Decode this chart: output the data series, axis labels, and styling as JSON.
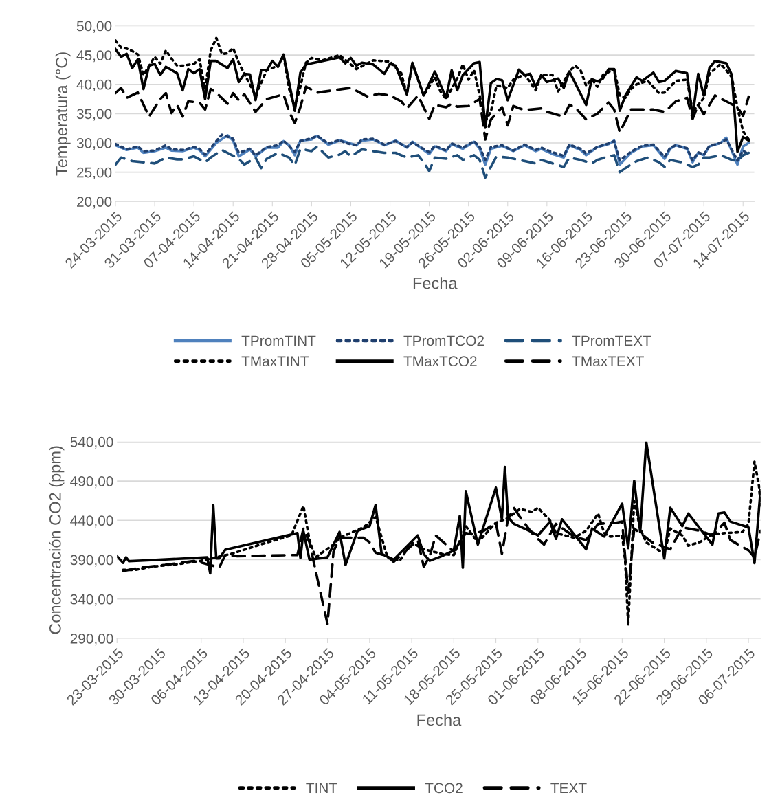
{
  "chart_data": [
    {
      "type": "line",
      "xlabel": "Fecha",
      "ylabel": "Temperatura (°C)",
      "grid": "y",
      "legend": "bottom",
      "marker": "none",
      "xlim": [
        "2015-03-24",
        "2015-07-16"
      ],
      "xticks": [
        {
          "value": "2015-03-24",
          "label": "24-03-2015"
        },
        {
          "value": "2015-03-31",
          "label": "31-03-2015"
        },
        {
          "value": "2015-04-07",
          "label": "07-04-2015"
        },
        {
          "value": "2015-04-14",
          "label": "14-04-2015"
        },
        {
          "value": "2015-04-21",
          "label": "21-04-2015"
        },
        {
          "value": "2015-04-28",
          "label": "28-04-2015"
        },
        {
          "value": "2015-05-05",
          "label": "05-05-2015"
        },
        {
          "value": "2015-05-12",
          "label": "12-05-2015"
        },
        {
          "value": "2015-05-19",
          "label": "19-05-2015"
        },
        {
          "value": "2015-05-26",
          "label": "26-05-2015"
        },
        {
          "value": "2015-06-02",
          "label": "02-06-2015"
        },
        {
          "value": "2015-06-09",
          "label": "09-06-2015"
        },
        {
          "value": "2015-06-16",
          "label": "16-06-2015"
        },
        {
          "value": "2015-06-23",
          "label": "23-06-2015"
        },
        {
          "value": "2015-06-30",
          "label": "30-06-2015"
        },
        {
          "value": "2015-07-07",
          "label": "07-07-2015"
        },
        {
          "value": "2015-07-14",
          "label": "14-07-2015"
        }
      ],
      "ylim": [
        20,
        50
      ],
      "yticks": [
        {
          "value": 20,
          "label": "20,00"
        },
        {
          "value": 25,
          "label": "25,00"
        },
        {
          "value": 30,
          "label": "30,00"
        },
        {
          "value": 35,
          "label": "35,00"
        },
        {
          "value": 40,
          "label": "40,00"
        },
        {
          "value": 45,
          "label": "45,00"
        },
        {
          "value": 50,
          "label": "50,00"
        }
      ],
      "series": [
        {
          "name": "TPromTINT",
          "color": "#4f81bd",
          "line_style": "solid",
          "x": [
            "2015-03-24",
            "2015-03-25",
            "2015-03-26",
            "2015-03-28",
            "2015-03-29",
            "2015-03-31",
            "2015-04-02",
            "2015-04-03",
            "2015-04-05",
            "2015-04-07",
            "2015-04-08",
            "2015-04-09",
            "2015-04-11",
            "2015-04-13",
            "2015-04-14",
            "2015-04-15",
            "2015-04-17",
            "2015-04-18",
            "2015-04-20",
            "2015-04-22",
            "2015-04-23",
            "2015-04-24",
            "2015-04-25",
            "2015-04-26",
            "2015-04-28",
            "2015-04-29",
            "2015-05-01",
            "2015-05-03",
            "2015-05-04",
            "2015-05-06",
            "2015-05-07",
            "2015-05-09",
            "2015-05-11",
            "2015-05-13",
            "2015-05-15",
            "2015-05-16",
            "2015-05-19",
            "2015-05-20",
            "2015-05-22",
            "2015-05-23",
            "2015-05-25",
            "2015-05-27",
            "2015-05-28",
            "2015-05-29",
            "2015-05-30",
            "2015-06-01",
            "2015-06-03",
            "2015-06-05",
            "2015-06-07",
            "2015-06-08",
            "2015-06-10",
            "2015-06-12",
            "2015-06-13",
            "2015-06-15",
            "2015-06-16",
            "2015-06-18",
            "2015-06-20",
            "2015-06-21",
            "2015-06-22",
            "2015-06-24",
            "2015-06-26",
            "2015-06-28",
            "2015-06-30",
            "2015-07-01",
            "2015-07-02",
            "2015-07-04",
            "2015-07-05",
            "2015-07-06",
            "2015-07-07",
            "2015-07-08",
            "2015-07-10",
            "2015-07-11",
            "2015-07-13",
            "2015-07-14",
            "2015-07-15"
          ],
          "values": [
            29.6,
            29.2,
            28.8,
            29.2,
            28.3,
            28.6,
            29.2,
            28.7,
            28.6,
            29.2,
            28.8,
            27.7,
            30.0,
            31.3,
            30.4,
            27.7,
            28.9,
            27.7,
            29.2,
            29.2,
            30.3,
            29.6,
            27.9,
            30.4,
            30.6,
            31.2,
            29.7,
            30.4,
            30.2,
            29.6,
            30.4,
            30.6,
            29.6,
            30.4,
            29.2,
            30.2,
            28.1,
            29.4,
            28.6,
            29.8,
            29.0,
            30.2,
            29.0,
            26.3,
            29.0,
            29.5,
            28.6,
            29.6,
            28.6,
            29.0,
            28.1,
            27.5,
            29.6,
            28.8,
            27.9,
            29.3,
            29.8,
            30.4,
            26.3,
            28.3,
            29.4,
            29.6,
            27.3,
            29.0,
            29.6,
            29.0,
            26.7,
            28.3,
            27.9,
            29.4,
            30.0,
            30.9,
            26.3,
            29.4,
            30.0
          ]
        },
        {
          "name": "TPromTCO2",
          "color": "#1f3f6e",
          "line_style": "dotted",
          "x": [
            "2015-03-24",
            "2015-03-26",
            "2015-03-28",
            "2015-03-29",
            "2015-03-31",
            "2015-04-02",
            "2015-04-03",
            "2015-04-05",
            "2015-04-07",
            "2015-04-08",
            "2015-04-09",
            "2015-04-11",
            "2015-04-12",
            "2015-04-14",
            "2015-04-15",
            "2015-04-17",
            "2015-04-18",
            "2015-04-20",
            "2015-04-22",
            "2015-04-23",
            "2015-04-25",
            "2015-04-26",
            "2015-04-28",
            "2015-04-29",
            "2015-05-01",
            "2015-05-03",
            "2015-05-04",
            "2015-05-06",
            "2015-05-07",
            "2015-05-09",
            "2015-05-11",
            "2015-05-13",
            "2015-05-15",
            "2015-05-16",
            "2015-05-19",
            "2015-05-20",
            "2015-05-22",
            "2015-05-23",
            "2015-05-25",
            "2015-05-27",
            "2015-05-28",
            "2015-05-29",
            "2015-05-30",
            "2015-06-01",
            "2015-06-03",
            "2015-06-05",
            "2015-06-07",
            "2015-06-08",
            "2015-06-10",
            "2015-06-12",
            "2015-06-13",
            "2015-06-15",
            "2015-06-16",
            "2015-06-18",
            "2015-06-20",
            "2015-06-21",
            "2015-06-22",
            "2015-06-24",
            "2015-06-26",
            "2015-06-28",
            "2015-06-30",
            "2015-07-01",
            "2015-07-02",
            "2015-07-04",
            "2015-07-05",
            "2015-07-06",
            "2015-07-07",
            "2015-07-08",
            "2015-07-10",
            "2015-07-11",
            "2015-07-13",
            "2015-07-14",
            "2015-07-15"
          ],
          "values": [
            29.8,
            28.9,
            29.4,
            28.6,
            28.7,
            29.6,
            28.9,
            28.8,
            29.3,
            29.0,
            28.0,
            30.3,
            31.4,
            30.7,
            28.3,
            29.0,
            27.9,
            29.3,
            29.6,
            30.4,
            28.5,
            30.3,
            30.8,
            31.2,
            29.9,
            30.5,
            30.0,
            29.6,
            30.6,
            30.7,
            29.7,
            30.3,
            29.3,
            30.1,
            28.4,
            29.5,
            28.7,
            29.9,
            29.2,
            30.3,
            29.3,
            27.1,
            29.3,
            29.6,
            28.7,
            29.7,
            28.8,
            29.2,
            28.4,
            27.8,
            29.7,
            29.0,
            28.2,
            29.3,
            29.9,
            30.3,
            27.0,
            28.5,
            29.5,
            29.7,
            27.6,
            29.2,
            29.6,
            29.1,
            27.0,
            28.4,
            28.0,
            29.5,
            30.0,
            30.6,
            27.0,
            28.7,
            28.0
          ]
        },
        {
          "name": "TPromTEXT",
          "color": "#1f4e79",
          "line_style": "dashed",
          "x": [
            "2015-03-24",
            "2015-03-25",
            "2015-03-27",
            "2015-03-29",
            "2015-03-31",
            "2015-04-02",
            "2015-04-04",
            "2015-04-05",
            "2015-04-07",
            "2015-04-09",
            "2015-04-10",
            "2015-04-12",
            "2015-04-13",
            "2015-04-15",
            "2015-04-16",
            "2015-04-18",
            "2015-04-19",
            "2015-04-20",
            "2015-04-22",
            "2015-04-24",
            "2015-04-25",
            "2015-04-26",
            "2015-04-28",
            "2015-04-29",
            "2015-05-01",
            "2015-05-03",
            "2015-05-04",
            "2015-05-05",
            "2015-05-07",
            "2015-05-09",
            "2015-05-11",
            "2015-05-13",
            "2015-05-15",
            "2015-05-17",
            "2015-05-18",
            "2015-05-19",
            "2015-05-20",
            "2015-05-22",
            "2015-05-24",
            "2015-05-25",
            "2015-05-27",
            "2015-05-28",
            "2015-05-29",
            "2015-05-30",
            "2015-05-31",
            "2015-06-02",
            "2015-06-04",
            "2015-06-07",
            "2015-06-08",
            "2015-06-10",
            "2015-06-12",
            "2015-06-13",
            "2015-06-15",
            "2015-06-17",
            "2015-06-18",
            "2015-06-20",
            "2015-06-21",
            "2015-06-22",
            "2015-06-23",
            "2015-06-25",
            "2015-06-27",
            "2015-06-29",
            "2015-06-30",
            "2015-07-01",
            "2015-07-03",
            "2015-07-05",
            "2015-07-06",
            "2015-07-07",
            "2015-07-08",
            "2015-07-10",
            "2015-07-12",
            "2015-07-13",
            "2015-07-14",
            "2015-07-15"
          ],
          "values": [
            26.3,
            27.5,
            26.9,
            26.7,
            26.5,
            27.5,
            27.2,
            27.2,
            27.7,
            26.7,
            27.5,
            28.8,
            28.3,
            27.3,
            26.3,
            27.5,
            25.7,
            27.3,
            28.3,
            27.5,
            26.2,
            29.0,
            28.6,
            29.4,
            27.5,
            28.0,
            28.6,
            27.7,
            28.9,
            28.6,
            28.3,
            28.3,
            27.5,
            27.9,
            26.7,
            25.2,
            27.5,
            27.3,
            27.9,
            27.1,
            27.9,
            27.1,
            24.1,
            25.9,
            27.7,
            27.5,
            27.1,
            26.5,
            27.1,
            26.5,
            25.9,
            27.5,
            27.1,
            26.5,
            27.1,
            27.7,
            27.9,
            25.0,
            25.7,
            26.9,
            27.5,
            26.7,
            25.9,
            27.1,
            26.7,
            25.9,
            26.3,
            27.5,
            27.5,
            27.9,
            27.1,
            26.9,
            27.9,
            28.3
          ]
        },
        {
          "name": "TMaxTINT",
          "color": "#000000",
          "line_style": "dotted",
          "x": [
            "2015-03-24",
            "2015-03-25",
            "2015-03-26",
            "2015-03-27",
            "2015-03-28",
            "2015-03-29",
            "2015-03-31",
            "2015-04-01",
            "2015-04-02",
            "2015-04-03",
            "2015-04-04",
            "2015-04-05",
            "2015-04-07",
            "2015-04-08",
            "2015-04-09",
            "2015-04-10",
            "2015-04-11",
            "2015-04-12",
            "2015-04-13",
            "2015-04-14",
            "2015-04-15",
            "2015-04-16",
            "2015-04-18",
            "2015-04-20",
            "2015-04-22",
            "2015-04-23",
            "2015-04-24",
            "2015-04-25",
            "2015-04-26",
            "2015-04-27",
            "2015-04-28",
            "2015-04-30",
            "2015-05-03",
            "2015-05-06",
            "2015-05-09",
            "2015-05-12",
            "2015-05-14",
            "2015-05-15",
            "2015-05-16",
            "2015-05-18",
            "2015-05-20",
            "2015-05-21",
            "2015-05-22",
            "2015-05-24",
            "2015-05-25",
            "2015-05-26",
            "2015-05-27",
            "2015-05-28",
            "2015-05-29",
            "2015-05-30",
            "2015-05-31",
            "2015-06-02",
            "2015-06-03",
            "2015-06-05",
            "2015-06-07",
            "2015-06-08",
            "2015-06-10",
            "2015-06-11",
            "2015-06-13",
            "2015-06-14",
            "2015-06-15",
            "2015-06-16",
            "2015-06-17",
            "2015-06-18",
            "2015-06-19",
            "2015-06-21",
            "2015-06-22",
            "2015-06-23",
            "2015-06-24",
            "2015-06-25",
            "2015-06-27",
            "2015-06-29",
            "2015-06-30",
            "2015-07-02",
            "2015-07-04",
            "2015-07-05",
            "2015-07-07",
            "2015-07-08",
            "2015-07-10",
            "2015-07-11",
            "2015-07-12",
            "2015-07-13",
            "2015-07-14",
            "2015-07-15"
          ],
          "values": [
            47.5,
            46.3,
            46.1,
            45.7,
            45.1,
            41.6,
            44.7,
            43.5,
            45.8,
            44.4,
            43.2,
            43.2,
            43.5,
            44.3,
            39.2,
            45.8,
            47.9,
            45.2,
            45.3,
            46.2,
            43.7,
            41.8,
            38.1,
            42.4,
            43.2,
            44.9,
            39.2,
            36.1,
            39.6,
            43.7,
            44.5,
            44.1,
            45.0,
            42.6,
            44.1,
            43.9,
            41.9,
            38.3,
            43.5,
            38.1,
            41.2,
            38.8,
            37.5,
            41.0,
            43.4,
            40.8,
            42.4,
            38.1,
            33.7,
            35.3,
            39.8,
            39.4,
            40.8,
            41.7,
            39.0,
            41.6,
            41.6,
            38.8,
            42.2,
            43.2,
            42.4,
            39.8,
            40.9,
            39.6,
            41.6,
            42.6,
            38.1,
            37.7,
            39.2,
            40.0,
            40.6,
            38.5,
            38.6,
            40.6,
            40.8,
            35.3,
            37.7,
            41.8,
            43.5,
            42.4,
            41.2,
            36.0,
            32.0,
            30.6
          ]
        },
        {
          "name": "TMaxTCO2",
          "color": "#000000",
          "line_style": "solid",
          "x": [
            "2015-03-24",
            "2015-03-25",
            "2015-03-26",
            "2015-03-27",
            "2015-03-28",
            "2015-03-29",
            "2015-03-30",
            "2015-03-31",
            "2015-04-01",
            "2015-04-02",
            "2015-04-04",
            "2015-04-05",
            "2015-04-06",
            "2015-04-07",
            "2015-04-08",
            "2015-04-09",
            "2015-04-10",
            "2015-04-11",
            "2015-04-13",
            "2015-04-14",
            "2015-04-15",
            "2015-04-16",
            "2015-04-17",
            "2015-04-18",
            "2015-04-19",
            "2015-04-20",
            "2015-04-21",
            "2015-04-22",
            "2015-04-23",
            "2015-04-25",
            "2015-04-26",
            "2015-04-27",
            "2015-04-30",
            "2015-05-03",
            "2015-05-04",
            "2015-05-05",
            "2015-05-06",
            "2015-05-07",
            "2015-05-09",
            "2015-05-11",
            "2015-05-12",
            "2015-05-13",
            "2015-05-15",
            "2015-05-16",
            "2015-05-18",
            "2015-05-20",
            "2015-05-22",
            "2015-05-23",
            "2015-05-24",
            "2015-05-25",
            "2015-05-27",
            "2015-05-28",
            "2015-05-29",
            "2015-05-30",
            "2015-05-31",
            "2015-06-01",
            "2015-06-02",
            "2015-06-04",
            "2015-06-05",
            "2015-06-06",
            "2015-06-07",
            "2015-06-08",
            "2015-06-09",
            "2015-06-11",
            "2015-06-12",
            "2015-06-13",
            "2015-06-16",
            "2015-06-17",
            "2015-06-18",
            "2015-06-19",
            "2015-06-20",
            "2015-06-21",
            "2015-06-22",
            "2015-06-23",
            "2015-06-25",
            "2015-06-26",
            "2015-06-28",
            "2015-06-29",
            "2015-06-30",
            "2015-07-02",
            "2015-07-04",
            "2015-07-05",
            "2015-07-06",
            "2015-07-07",
            "2015-07-08",
            "2015-07-09",
            "2015-07-11",
            "2015-07-12",
            "2015-07-13",
            "2015-07-14",
            "2015-07-15"
          ],
          "values": [
            46.0,
            44.7,
            45.2,
            42.8,
            44.3,
            39.2,
            43.2,
            43.5,
            41.6,
            43.0,
            41.9,
            39.0,
            42.6,
            41.9,
            42.6,
            37.5,
            44.0,
            44.0,
            42.8,
            44.3,
            40.4,
            41.8,
            41.7,
            37.3,
            42.4,
            42.4,
            44.0,
            43.0,
            45.1,
            35.5,
            42.0,
            43.4,
            44.0,
            44.6,
            43.6,
            44.5,
            43.2,
            43.7,
            43.4,
            41.8,
            43.5,
            43.2,
            38.3,
            43.7,
            38.1,
            42.2,
            37.7,
            42.4,
            39.0,
            41.6,
            43.6,
            43.8,
            32.6,
            40.2,
            40.9,
            40.7,
            37.3,
            42.5,
            41.6,
            41.8,
            39.6,
            41.6,
            40.4,
            41.0,
            39.4,
            42.2,
            36.5,
            40.9,
            40.5,
            41.0,
            42.6,
            42.6,
            35.5,
            38.1,
            41.2,
            40.6,
            42.0,
            40.4,
            40.6,
            42.3,
            41.9,
            34.6,
            41.8,
            38.1,
            42.8,
            44.0,
            43.6,
            41.6,
            28.5,
            31.0,
            30.4
          ]
        },
        {
          "name": "TMaxTEXT",
          "color": "#000000",
          "line_style": "dashed",
          "x": [
            "2015-03-24",
            "2015-03-25",
            "2015-03-26",
            "2015-03-28",
            "2015-03-30",
            "2015-04-01",
            "2015-04-02",
            "2015-04-03",
            "2015-04-04",
            "2015-04-05",
            "2015-04-06",
            "2015-04-08",
            "2015-04-09",
            "2015-04-10",
            "2015-04-11",
            "2015-04-13",
            "2015-04-14",
            "2015-04-15",
            "2015-04-16",
            "2015-04-18",
            "2015-04-20",
            "2015-04-23",
            "2015-04-24",
            "2015-04-25",
            "2015-04-26",
            "2015-04-27",
            "2015-04-29",
            "2015-05-05",
            "2015-05-08",
            "2015-05-10",
            "2015-05-12",
            "2015-05-14",
            "2015-05-15",
            "2015-05-17",
            "2015-05-19",
            "2015-05-20",
            "2015-05-22",
            "2015-05-23",
            "2015-05-24",
            "2015-05-26",
            "2015-05-28",
            "2015-05-29",
            "2015-05-30",
            "2015-06-01",
            "2015-06-02",
            "2015-06-03",
            "2015-06-05",
            "2015-06-08",
            "2015-06-09",
            "2015-06-12",
            "2015-06-13",
            "2015-06-14",
            "2015-06-16",
            "2015-06-18",
            "2015-06-20",
            "2015-06-21",
            "2015-06-22",
            "2015-06-24",
            "2015-06-28",
            "2015-06-30",
            "2015-07-02",
            "2015-07-04",
            "2015-07-05",
            "2015-07-06",
            "2015-07-07",
            "2015-07-09",
            "2015-07-11",
            "2015-07-13",
            "2015-07-14",
            "2015-07-15"
          ],
          "values": [
            38.5,
            39.4,
            37.7,
            38.6,
            34.5,
            37.5,
            38.5,
            35.1,
            36.5,
            34.5,
            37.1,
            36.9,
            35.7,
            39.2,
            38.6,
            36.7,
            38.5,
            37.3,
            38.3,
            35.3,
            37.5,
            38.3,
            35.3,
            33.4,
            36.1,
            39.6,
            38.6,
            39.4,
            37.9,
            38.4,
            38.1,
            37.1,
            35.9,
            38.1,
            34.1,
            36.5,
            36.1,
            36.7,
            36.2,
            36.3,
            37.5,
            30.6,
            34.0,
            36.1,
            33.0,
            36.3,
            35.6,
            35.9,
            35.3,
            34.5,
            36.5,
            36.1,
            34.0,
            35.0,
            36.9,
            35.7,
            31.8,
            35.7,
            35.7,
            35.3,
            37.1,
            37.7,
            34.1,
            36.5,
            34.9,
            38.1,
            37.1,
            36.1,
            34.6,
            37.9
          ]
        }
      ]
    },
    {
      "type": "line",
      "xlabel": "Fecha",
      "ylabel": "Concentración CO2 (ppm)",
      "grid": "y",
      "legend": "bottom",
      "marker": "none",
      "xlim": [
        "2015-03-23",
        "2015-07-08"
      ],
      "xticks": [
        {
          "value": "2015-03-23",
          "label": "23-03-2015"
        },
        {
          "value": "2015-03-30",
          "label": "30-03-2015"
        },
        {
          "value": "2015-04-06",
          "label": "06-04-2015"
        },
        {
          "value": "2015-04-13",
          "label": "13-04-2015"
        },
        {
          "value": "2015-04-20",
          "label": "20-04-2015"
        },
        {
          "value": "2015-04-27",
          "label": "27-04-2015"
        },
        {
          "value": "2015-05-04",
          "label": "04-05-2015"
        },
        {
          "value": "2015-05-11",
          "label": "11-05-2015"
        },
        {
          "value": "2015-05-18",
          "label": "18-05-2015"
        },
        {
          "value": "2015-05-25",
          "label": "25-05-2015"
        },
        {
          "value": "2015-06-01",
          "label": "01-06-2015"
        },
        {
          "value": "2015-06-08",
          "label": "08-06-2015"
        },
        {
          "value": "2015-06-15",
          "label": "15-06-2015"
        },
        {
          "value": "2015-06-22",
          "label": "22-06-2015"
        },
        {
          "value": "2015-06-29",
          "label": "29-06-2015"
        },
        {
          "value": "2015-07-06",
          "label": "06-07-2015"
        }
      ],
      "ylim": [
        290,
        540
      ],
      "yticks": [
        {
          "value": 290,
          "label": "290,00"
        },
        {
          "value": 340,
          "label": "340,00"
        },
        {
          "value": 390,
          "label": "390,00"
        },
        {
          "value": 440,
          "label": "440,00"
        },
        {
          "value": 490,
          "label": "490,00"
        },
        {
          "value": 540,
          "label": "540,00"
        }
      ],
      "series": [
        {
          "name": "TINT",
          "color": "#000000",
          "line_style": "dotted",
          "x": [
            "2015-03-24",
            "2015-03-26",
            "2015-03-29",
            "2015-04-02",
            "2015-04-06",
            "2015-04-11",
            "2015-04-17",
            "2015-04-21",
            "2015-04-23",
            "2015-04-24",
            "2015-04-25",
            "2015-04-28",
            "2015-04-29",
            "2015-05-03",
            "2015-05-05",
            "2015-05-07",
            "2015-05-09",
            "2015-05-11",
            "2015-05-13",
            "2015-05-16",
            "2015-05-18",
            "2015-05-20",
            "2015-05-22",
            "2015-05-25",
            "2015-05-27",
            "2015-05-29",
            "2015-05-31",
            "2015-06-01",
            "2015-06-03",
            "2015-06-04",
            "2015-06-07",
            "2015-06-09",
            "2015-06-11",
            "2015-06-12",
            "2015-06-13",
            "2015-06-15",
            "2015-06-15T12:00",
            "2015-06-16",
            "2015-06-17",
            "2015-06-18",
            "2015-06-19",
            "2015-06-22",
            "2015-06-23",
            "2015-06-25",
            "2015-06-26",
            "2015-06-28",
            "2015-06-30",
            "2015-07-02",
            "2015-07-05",
            "2015-07-06",
            "2015-07-07",
            "2015-07-07T18:00",
            "2015-07-08"
          ],
          "values": [
            377,
            377,
            381.3,
            384.3,
            388.6,
            397.4,
            412.0,
            420.8,
            458.3,
            415.0,
            393.0,
            409.2,
            417.9,
            431.1,
            444.3,
            392.2,
            388.6,
            412.0,
            403.3,
            397.4,
            395.9,
            432.6,
            412.0,
            436.9,
            442.8,
            454.5,
            450.7,
            456.0,
            439.9,
            423.8,
            417.9,
            426.7,
            448.7,
            423.8,
            419.4,
            420.8,
            388.6,
            306.7,
            464.8,
            429.6,
            412.0,
            397.4,
            429.6,
            420.8,
            407.7,
            412.7,
            422.4,
            423.8,
            425.2,
            435.5,
            514.5,
            483.8,
            458.9
          ]
        },
        {
          "name": "TCO2",
          "color": "#000000",
          "line_style": "solid",
          "x": [
            "2015-03-23",
            "2015-03-24",
            "2015-03-24T12:00",
            "2015-03-25",
            "2015-04-07",
            "2015-04-07T12:00",
            "2015-04-08",
            "2015-04-08T12:00",
            "2015-04-09",
            "2015-04-10",
            "2015-04-22",
            "2015-04-22T12:00",
            "2015-04-23",
            "2015-04-24",
            "2015-04-27",
            "2015-04-29",
            "2015-04-30",
            "2015-05-02",
            "2015-05-04",
            "2015-05-05",
            "2015-05-06",
            "2015-05-08",
            "2015-05-12",
            "2015-05-13",
            "2015-05-14",
            "2015-05-16",
            "2015-05-18",
            "2015-05-19",
            "2015-05-19T12:00",
            "2015-05-20",
            "2015-05-22",
            "2015-05-25",
            "2015-05-26",
            "2015-05-26T12:00",
            "2015-05-27",
            "2015-05-28",
            "2015-05-31",
            "2015-06-01",
            "2015-06-03",
            "2015-06-04",
            "2015-06-05",
            "2015-06-09",
            "2015-06-10",
            "2015-06-12",
            "2015-06-15",
            "2015-06-16",
            "2015-06-17",
            "2015-06-18",
            "2015-06-19",
            "2015-06-22",
            "2015-06-23",
            "2015-06-25",
            "2015-06-26",
            "2015-06-30",
            "2015-07-01",
            "2015-07-02",
            "2015-07-03",
            "2015-07-06",
            "2015-07-07",
            "2015-07-08"
          ],
          "values": [
            394.5,
            386.0,
            393.0,
            388.0,
            393.0,
            372.6,
            459.5,
            391.6,
            391.6,
            402.7,
            423.8,
            392.2,
            426.1,
            390.1,
            393.0,
            425.2,
            383.4,
            426.7,
            432.6,
            459.5,
            397.4,
            390.1,
            420.8,
            397.4,
            388.6,
            394.5,
            401.8,
            445.7,
            379.9,
            477.1,
            409.2,
            481.5,
            441.4,
            507.8,
            444.3,
            435.5,
            425.2,
            420.8,
            438.4,
            416.5,
            441.3,
            403.3,
            429.6,
            419.4,
            461.2,
            404.8,
            490.2,
            425.2,
            540,
            391.6,
            456.0,
            432.6,
            448.7,
            409.2,
            448.7,
            450.1,
            438.4,
            431.1,
            385.7,
            477.9
          ]
        },
        {
          "name": "TEXT",
          "color": "#000000",
          "line_style": "dashed",
          "x": [
            "2015-03-24",
            "2015-03-27",
            "2015-03-31",
            "2015-04-05",
            "2015-04-09",
            "2015-04-10",
            "2015-04-12",
            "2015-04-22",
            "2015-04-23",
            "2015-04-24",
            "2015-04-25",
            "2015-04-27",
            "2015-04-28",
            "2015-04-29",
            "2015-05-03",
            "2015-05-04",
            "2015-05-05",
            "2015-05-07",
            "2015-05-08",
            "2015-05-12",
            "2015-05-13",
            "2015-05-14",
            "2015-05-15",
            "2015-05-18",
            "2015-05-20",
            "2015-05-21",
            "2015-05-23",
            "2015-05-25",
            "2015-05-26",
            "2015-05-27",
            "2015-05-28",
            "2015-05-29",
            "2015-05-31",
            "2015-06-02",
            "2015-06-04",
            "2015-06-07",
            "2015-06-09",
            "2015-06-11",
            "2015-06-14",
            "2015-06-15",
            "2015-06-16",
            "2015-06-17",
            "2015-06-20",
            "2015-06-23",
            "2015-06-25",
            "2015-06-28",
            "2015-06-30",
            "2015-07-02",
            "2015-07-03",
            "2015-07-06",
            "2015-07-07",
            "2015-07-08"
          ],
          "values": [
            375.6,
            380.0,
            383.4,
            388.6,
            380.0,
            396.0,
            394.5,
            396.0,
            429.6,
            412.0,
            377.0,
            308.2,
            400.4,
            417.9,
            417.9,
            412.0,
            398.9,
            394.5,
            387.2,
            415.0,
            381.3,
            394.5,
            420.8,
            400.4,
            423.8,
            422.4,
            426.7,
            437.0,
            397.5,
            441.3,
            456.0,
            444.3,
            423.8,
            409.2,
            435.5,
            419.4,
            415.0,
            435.5,
            437.0,
            438.4,
            347.6,
            429.6,
            412.0,
            403.3,
            431.1,
            426.7,
            420.8,
            437.0,
            415.0,
            401.9,
            393.0,
            426.7
          ]
        }
      ]
    }
  ]
}
